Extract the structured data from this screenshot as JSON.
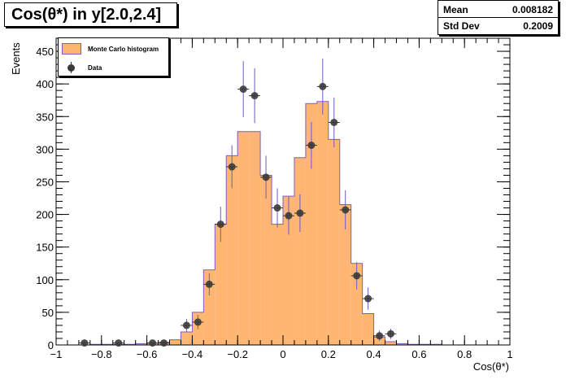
{
  "title": "Cos(θ*) in y[2.0,2.4]",
  "stats": {
    "mean_label": "Mean",
    "mean_value": "0.008182",
    "std_label": "Std Dev",
    "std_value": "0.2009"
  },
  "legend": {
    "mc_label": "Monte Carlo histogram",
    "data_label": "Data"
  },
  "colors": {
    "mc_fill": "#ffb673",
    "mc_line": "#7a5cc8",
    "data_marker": "#3a3a3a",
    "error_bar": "#6a5acd"
  },
  "chart_data": {
    "type": "bar",
    "title": "Cos(θ*) in y[2.0,2.4]",
    "xlabel": "Cos(θ*)",
    "ylabel": "Events",
    "xlim": [
      -1,
      1
    ],
    "ylim": [
      0,
      470
    ],
    "x_ticks": [
      -1,
      -0.8,
      -0.6,
      -0.4,
      -0.2,
      0,
      0.2,
      0.4,
      0.6,
      0.8,
      1
    ],
    "x_tick_labels": [
      "−1",
      "−0.8",
      "−0.6",
      "−0.4",
      "−0.2",
      "0",
      "0.2",
      "0.4",
      "0.6",
      "0.8",
      "1"
    ],
    "y_ticks": [
      0,
      50,
      100,
      150,
      200,
      250,
      300,
      350,
      400,
      450
    ],
    "y_tick_labels": [
      "0",
      "50",
      "100",
      "150",
      "200",
      "250",
      "300",
      "350",
      "400",
      "450"
    ],
    "series": [
      {
        "name": "Monte Carlo histogram",
        "kind": "histogram",
        "bin_edges": [
          -1.0,
          -0.95,
          -0.9,
          -0.85,
          -0.8,
          -0.75,
          -0.7,
          -0.65,
          -0.6,
          -0.55,
          -0.5,
          -0.45,
          -0.4,
          -0.35,
          -0.3,
          -0.25,
          -0.2,
          -0.15,
          -0.1,
          -0.05,
          0.0,
          0.05,
          0.1,
          0.15,
          0.2,
          0.25,
          0.3,
          0.35,
          0.4,
          0.45,
          0.5,
          0.55,
          0.6,
          0.65,
          0.7,
          0.75,
          0.8,
          0.85,
          0.9,
          0.95,
          1.0
        ],
        "values": [
          0,
          0,
          0,
          1,
          1,
          1,
          1,
          2,
          3,
          4,
          8,
          20,
          50,
          115,
          185,
          290,
          327,
          327,
          260,
          185,
          228,
          287,
          370,
          373,
          315,
          215,
          125,
          48,
          12,
          5,
          2,
          1,
          1,
          1,
          0,
          0,
          0,
          0,
          0,
          0
        ]
      },
      {
        "name": "Data",
        "kind": "points",
        "x": [
          -0.875,
          -0.725,
          -0.575,
          -0.525,
          -0.425,
          -0.375,
          -0.325,
          -0.275,
          -0.225,
          -0.175,
          -0.125,
          -0.075,
          -0.025,
          0.025,
          0.075,
          0.125,
          0.175,
          0.225,
          0.275,
          0.325,
          0.375,
          0.425,
          0.475
        ],
        "y": [
          3,
          3,
          3,
          3,
          30,
          35,
          93,
          185,
          273,
          392,
          382,
          257,
          210,
          198,
          202,
          306,
          396,
          341,
          207,
          106,
          71,
          14,
          17
        ],
        "err": [
          2,
          2,
          2,
          2,
          10,
          11,
          17,
          27,
          33,
          43,
          42,
          33,
          30,
          29,
          29,
          36,
          43,
          38,
          30,
          21,
          17,
          8,
          8
        ]
      }
    ]
  }
}
